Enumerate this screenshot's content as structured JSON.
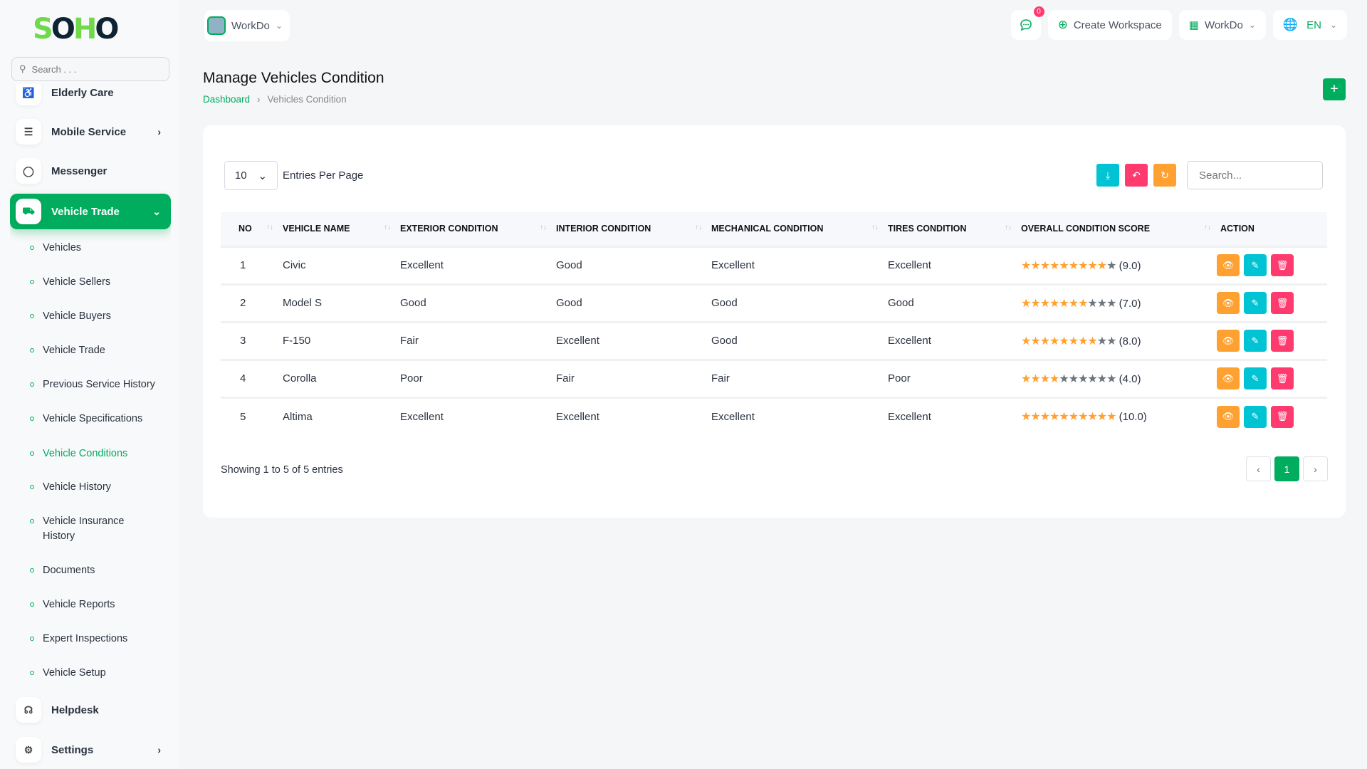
{
  "brand": {
    "logo": "SOHO",
    "accent": "#00ac5d"
  },
  "sidebar": {
    "search_placeholder": "Search . . .",
    "items": [
      {
        "label": "Elderly Care"
      },
      {
        "label": "Mobile Service"
      },
      {
        "label": "Messenger"
      },
      {
        "label": "Vehicle Trade"
      },
      {
        "label": "Helpdesk"
      },
      {
        "label": "Settings"
      }
    ],
    "subitems": [
      {
        "label": "Vehicles"
      },
      {
        "label": "Vehicle Sellers"
      },
      {
        "label": "Vehicle Buyers"
      },
      {
        "label": "Vehicle Trade"
      },
      {
        "label": "Previous Service History"
      },
      {
        "label": "Vehicle Specifications"
      },
      {
        "label": "Vehicle Conditions"
      },
      {
        "label": "Vehicle History"
      },
      {
        "label": "Vehicle Insurance History"
      },
      {
        "label": "Documents"
      },
      {
        "label": "Vehicle Reports"
      },
      {
        "label": "Expert Inspections"
      },
      {
        "label": "Vehicle Setup"
      }
    ]
  },
  "topbar": {
    "workspace": "WorkDo",
    "notifications": "0",
    "create_workspace": "Create Workspace",
    "workspace_menu": "WorkDo",
    "language": "EN"
  },
  "page": {
    "title": "Manage Vehicles Condition",
    "breadcrumb": [
      "Dashboard",
      "Vehicles Condition"
    ]
  },
  "table": {
    "entries_value": "10",
    "entries_label": "Entries Per Page",
    "search_placeholder": "Search...",
    "columns": [
      "NO",
      "VEHICLE NAME",
      "EXTERIOR CONDITION",
      "INTERIOR CONDITION",
      "MECHANICAL CONDITION",
      "TIRES CONDITION",
      "OVERALL CONDITION SCORE",
      "ACTION"
    ],
    "rows": [
      {
        "no": "1",
        "name": "Civic",
        "exterior": "Excellent",
        "interior": "Good",
        "mechanical": "Excellent",
        "tires": "Excellent",
        "score": 9,
        "score_label": "(9.0)"
      },
      {
        "no": "2",
        "name": "Model S",
        "exterior": "Good",
        "interior": "Good",
        "mechanical": "Good",
        "tires": "Good",
        "score": 7,
        "score_label": "(7.0)"
      },
      {
        "no": "3",
        "name": "F-150",
        "exterior": "Fair",
        "interior": "Excellent",
        "mechanical": "Good",
        "tires": "Excellent",
        "score": 8,
        "score_label": "(8.0)"
      },
      {
        "no": "4",
        "name": "Corolla",
        "exterior": "Poor",
        "interior": "Fair",
        "mechanical": "Fair",
        "tires": "Poor",
        "score": 4,
        "score_label": "(4.0)"
      },
      {
        "no": "5",
        "name": "Altima",
        "exterior": "Excellent",
        "interior": "Excellent",
        "mechanical": "Excellent",
        "tires": "Excellent",
        "score": 10,
        "score_label": "(10.0)"
      }
    ],
    "max_score": 10,
    "showing": "Showing 1 to 5 of 5 entries",
    "current_page": "1"
  }
}
